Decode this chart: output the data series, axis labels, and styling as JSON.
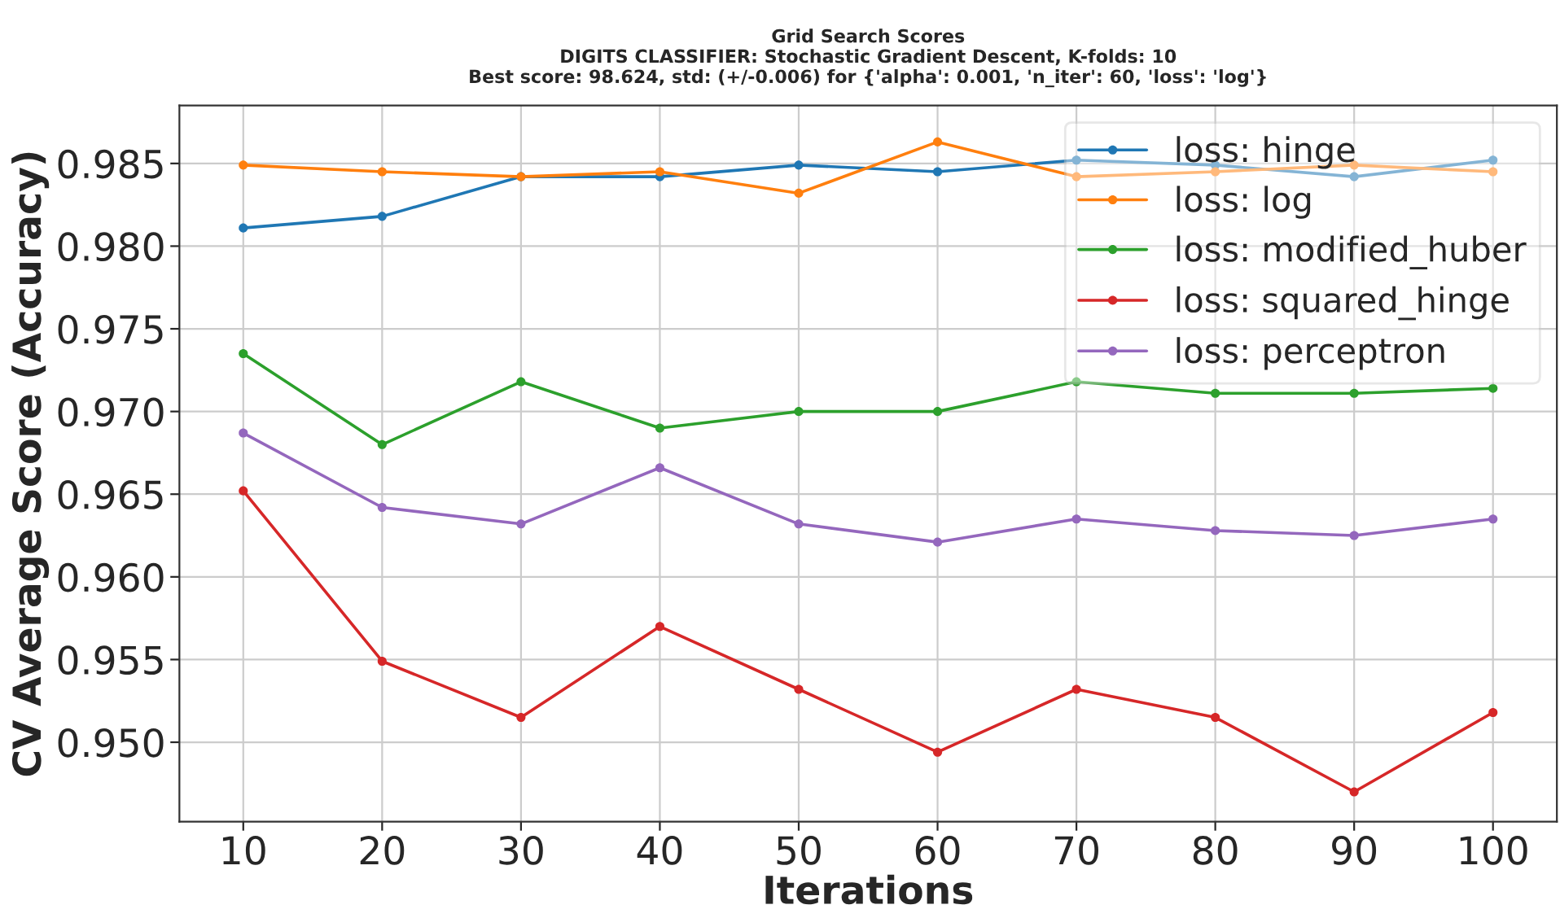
{
  "chart_data": {
    "type": "line",
    "title": "Grid Search Scores\nDIGITS CLASSIFIER: Stochastic Gradient Descent, K-folds: 10\nBest score: 98.624, std: (+/-0.006) for {'alpha': 0.001, 'n_iter': 60, 'loss': 'log'}",
    "xlabel": "Iterations",
    "ylabel": "CV Average Score (Accuracy)",
    "x": [
      10,
      20,
      30,
      40,
      50,
      60,
      70,
      80,
      90,
      100
    ],
    "series": [
      {
        "name": "loss: hinge",
        "color": "#1f77b4",
        "values": [
          0.9811,
          0.9818,
          0.9842,
          0.9842,
          0.9849,
          0.9845,
          0.9852,
          0.9849,
          0.9842,
          0.9852
        ]
      },
      {
        "name": "loss: log",
        "color": "#ff7f0e",
        "values": [
          0.9849,
          0.9845,
          0.9842,
          0.9845,
          0.9832,
          0.9863,
          0.9842,
          0.9845,
          0.9849,
          0.9845
        ]
      },
      {
        "name": "loss: modified_huber",
        "color": "#2ca02c",
        "values": [
          0.9735,
          0.968,
          0.9718,
          0.969,
          0.97,
          0.97,
          0.9718,
          0.9711,
          0.9711,
          0.9714
        ]
      },
      {
        "name": "loss: squared_hinge",
        "color": "#d62728",
        "values": [
          0.9652,
          0.9549,
          0.9515,
          0.957,
          0.9532,
          0.9494,
          0.9532,
          0.9515,
          0.947,
          0.9518
        ]
      },
      {
        "name": "loss: perceptron",
        "color": "#9467bd",
        "values": [
          0.9687,
          0.9642,
          0.9632,
          0.9666,
          0.9632,
          0.9621,
          0.9635,
          0.9628,
          0.9625,
          0.9635
        ]
      }
    ],
    "xlim": [
      5.4,
      104.6
    ],
    "ylim": [
      0.9452,
      0.9885
    ],
    "xticks": [
      10,
      20,
      30,
      40,
      50,
      60,
      70,
      80,
      90,
      100
    ],
    "yticks": [
      {
        "value": 0.95,
        "label": "0.950"
      },
      0.955,
      {
        "value": 0.96,
        "label": "0.960"
      },
      0.965,
      {
        "value": 0.97,
        "label": "0.970"
      },
      0.975,
      {
        "value": 0.98,
        "label": "0.980"
      },
      0.985
    ],
    "grid": true,
    "legend": "top right",
    "marker": "circle",
    "line_style": "solid"
  }
}
